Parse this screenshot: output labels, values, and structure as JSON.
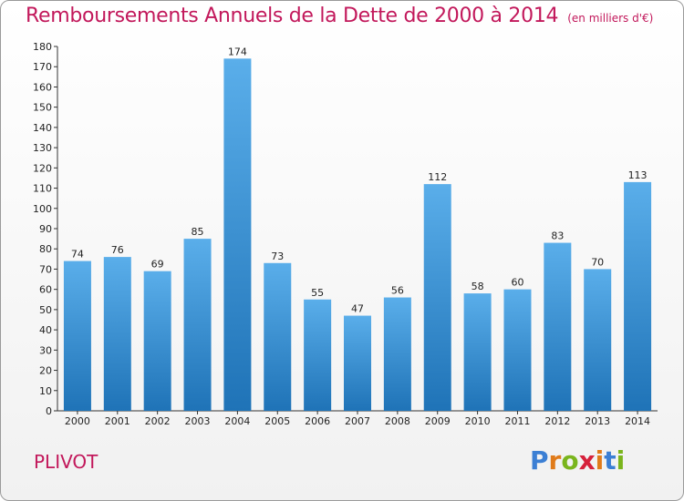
{
  "title": "Remboursements Annuels de la Dette de 2000 à 2014",
  "unit": "(en milliers d'€)",
  "commune": "PLIVOT",
  "logo": {
    "letters": [
      "P",
      "r",
      "o",
      "x",
      "i",
      "t",
      "i"
    ],
    "colors": [
      "#3b7fd4",
      "#e07b1a",
      "#7ab51d",
      "#d6213b",
      "#e07b1a",
      "#3b7fd4",
      "#7ab51d"
    ]
  },
  "colors": {
    "accent": "#c2185b",
    "bar_top": "#5aaeea",
    "bar_bottom": "#1f73b7"
  },
  "chart_data": {
    "type": "bar",
    "categories": [
      "2000",
      "2001",
      "2002",
      "2003",
      "2004",
      "2005",
      "2006",
      "2007",
      "2008",
      "2009",
      "2010",
      "2011",
      "2012",
      "2013",
      "2014"
    ],
    "values": [
      74,
      76,
      69,
      85,
      174,
      73,
      55,
      47,
      56,
      112,
      58,
      60,
      83,
      70,
      113
    ],
    "title": "Remboursements Annuels de la Dette de 2000 à 2014",
    "xlabel": "",
    "ylabel": "",
    "ylim": [
      0,
      180
    ],
    "yticks": [
      0,
      10,
      20,
      30,
      40,
      50,
      60,
      70,
      80,
      90,
      100,
      110,
      120,
      130,
      140,
      150,
      160,
      170,
      180
    ],
    "grid": false,
    "data_labels": true
  }
}
